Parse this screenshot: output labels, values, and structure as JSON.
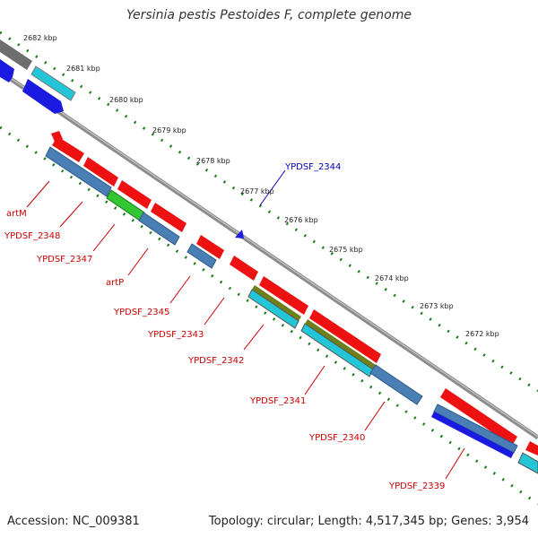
{
  "title": "Yersinia pestis Pestoides F, complete genome",
  "accession_label": "Accession: NC_009381",
  "summary_label": "Topology: circular; Length: 4,517,345 bp; Genes: 3,954",
  "colors": {
    "forward_gene": "#ee1111",
    "label_red": "#cc0000",
    "label_blue": "#0000bb",
    "backbone": "#8c8c8c",
    "tick_green": "#1a7a1a",
    "steel_blue": "#4a7fb5",
    "cyan": "#22c6d6",
    "blue": "#1a1ae0",
    "green": "#33c633",
    "olive": "#6f7f1a"
  },
  "kbp_labels": [
    "2682 kbp",
    "2681 kbp",
    "2680 kbp",
    "2679 kbp",
    "2678 kbp",
    "2677 kbp",
    "2676 kbp",
    "2675 kbp",
    "2674 kbp",
    "2673 kbp",
    "2672 kbp"
  ],
  "gene_labels": [
    "YPDSF_2344",
    "artM",
    "YPDSF_2348",
    "YPDSF_2347",
    "artP",
    "YPDSF_2345",
    "YPDSF_2343",
    "YPDSF_2342",
    "YPDSF_2341",
    "YPDSF_2340",
    "YPDSF_2339"
  ]
}
